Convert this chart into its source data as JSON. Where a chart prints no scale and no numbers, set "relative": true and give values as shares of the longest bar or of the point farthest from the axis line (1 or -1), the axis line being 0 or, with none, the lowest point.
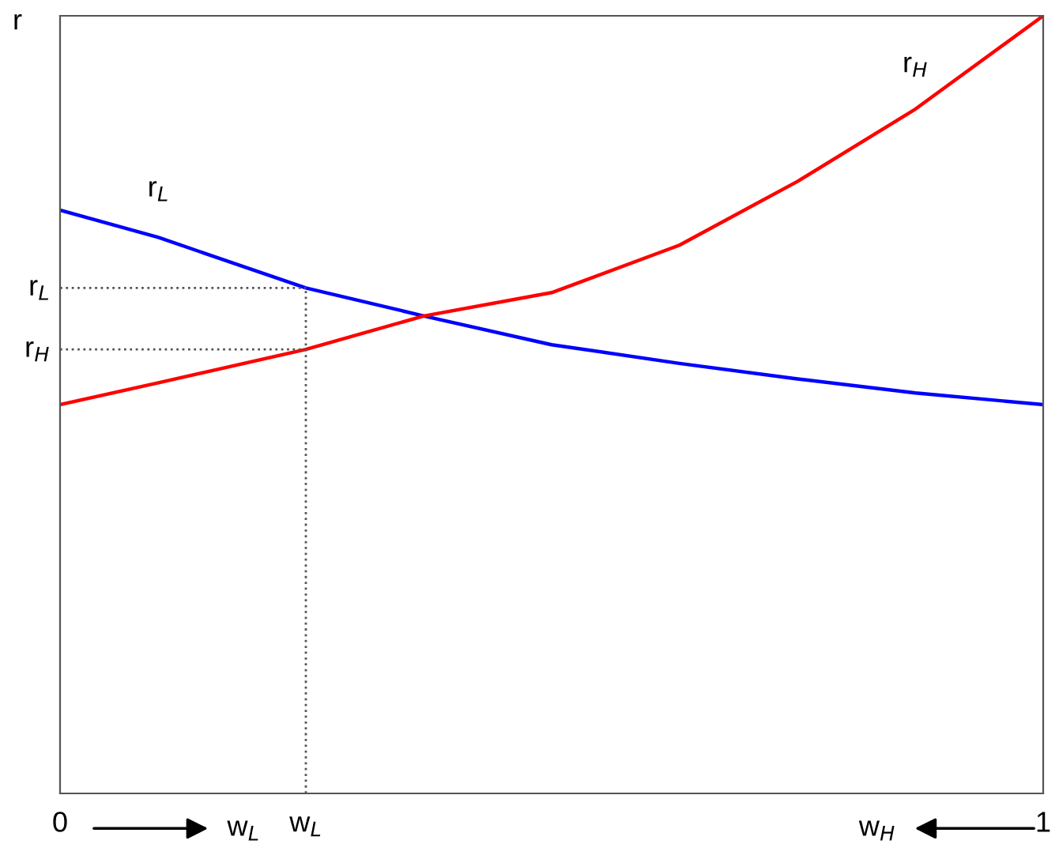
{
  "chart_data": {
    "type": "line",
    "relative": true,
    "ylabel": "r",
    "x": [
      0,
      0.1,
      0.25,
      0.37,
      0.5,
      0.63,
      0.75,
      0.87,
      1
    ],
    "series": [
      {
        "name": "r$_{L}$",
        "color": "#0000ff",
        "values": [
          0.75,
          0.715,
          0.65,
          0.614,
          0.577,
          0.553,
          0.533,
          0.515,
          0.5
        ]
      },
      {
        "name": "r$_{H}$",
        "color": "#ff0000",
        "values": [
          0.5,
          0.528,
          0.571,
          0.614,
          0.644,
          0.705,
          0.787,
          0.88,
          1.0
        ]
      }
    ],
    "xlim": [
      0,
      1
    ],
    "xticks": [
      0,
      {
        "value": 0.25,
        "label": "w$_{L}$"
      },
      1
    ],
    "ref_lines": [
      {
        "axis": "x",
        "value": 0.25,
        "label": null,
        "color": "#555555",
        "line_style": "dotted"
      },
      {
        "axis": "y",
        "value": 0.65,
        "label": "r$_{L}$",
        "color": "#555555",
        "line_style": "dotted"
      },
      {
        "axis": "y",
        "value": 0.571,
        "label": "r$_{H}$",
        "color": "#555555",
        "line_style": "dotted"
      }
    ],
    "annotations": [
      "w$_{L}$",
      "w$_{H}$"
    ],
    "grid": false,
    "legend": false,
    "line_style": "solid",
    "marker": "none"
  }
}
